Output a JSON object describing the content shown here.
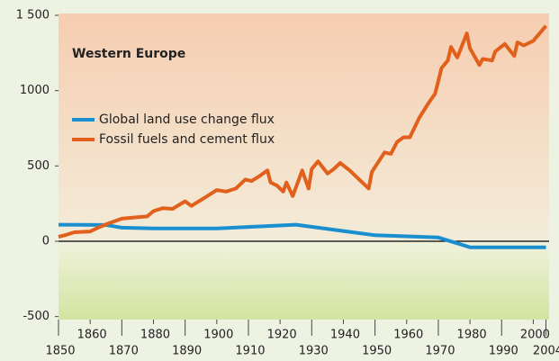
{
  "chart_data": {
    "type": "line",
    "title": "Western Europe",
    "series": [
      {
        "name": "Global land use change flux",
        "color": "#1a8fd0",
        "x": [
          1850,
          1865,
          1870,
          1880,
          1900,
          1925,
          1950,
          1970,
          1980,
          2004
        ],
        "values": [
          110,
          108,
          90,
          85,
          85,
          110,
          40,
          25,
          -40,
          -40
        ]
      },
      {
        "name": "Fossil fuels and cement flux",
        "color": "#e0601c",
        "x": [
          1850,
          1852,
          1855,
          1860,
          1863,
          1866,
          1870,
          1875,
          1878,
          1880,
          1883,
          1886,
          1890,
          1892,
          1897,
          1900,
          1903,
          1906,
          1909,
          1911,
          1914,
          1916,
          1917,
          1919,
          1921,
          1922,
          1924,
          1927,
          1929,
          1930,
          1932,
          1935,
          1937,
          1939,
          1942,
          1946,
          1948,
          1949,
          1953,
          1955,
          1957,
          1959,
          1961,
          1964,
          1967,
          1969,
          1971,
          1973,
          1974,
          1976,
          1979,
          1980,
          1983,
          1984,
          1987,
          1988,
          1991,
          1994,
          1995,
          1997,
          2000,
          2004
        ],
        "values": [
          30,
          40,
          60,
          65,
          95,
          120,
          150,
          160,
          165,
          200,
          220,
          215,
          265,
          235,
          300,
          340,
          330,
          350,
          410,
          400,
          440,
          470,
          390,
          370,
          330,
          390,
          300,
          470,
          350,
          480,
          530,
          450,
          480,
          520,
          470,
          390,
          350,
          460,
          590,
          580,
          660,
          690,
          690,
          820,
          920,
          980,
          1150,
          1200,
          1290,
          1220,
          1380,
          1280,
          1170,
          1210,
          1200,
          1260,
          1310,
          1230,
          1320,
          1300,
          1330,
          1430
        ]
      }
    ],
    "xlim": [
      1850,
      2005
    ],
    "xticks": [
      1850,
      1860,
      1870,
      1880,
      1890,
      1900,
      1910,
      1920,
      1930,
      1940,
      1950,
      1960,
      1970,
      1980,
      1990,
      2000,
      2004
    ],
    "ylim": [
      -520,
      1500
    ],
    "yticks": [
      -500,
      0,
      500,
      1000,
      {
        "value": 1500,
        "label": "1 500"
      }
    ],
    "legend": "upper-left"
  }
}
